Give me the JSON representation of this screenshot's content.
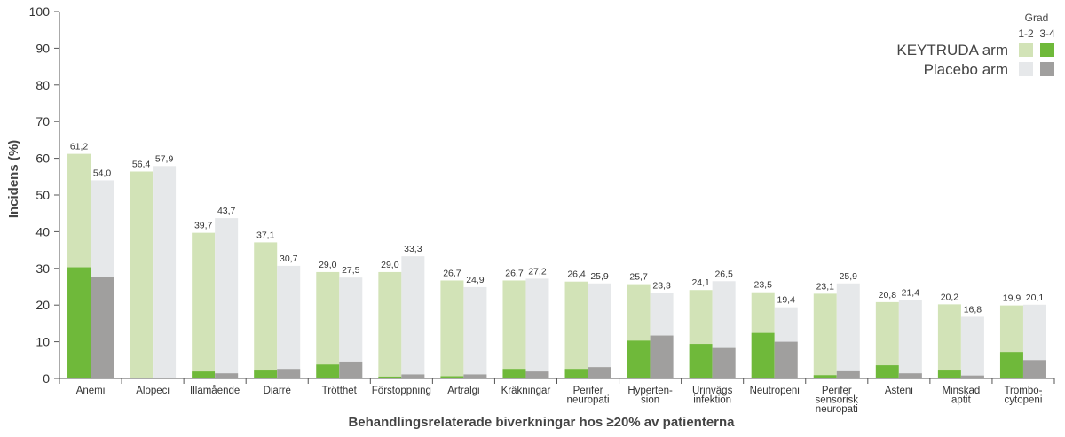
{
  "chart_data": {
    "type": "bar",
    "title": "",
    "xlabel": "Behandlingsrelaterade biverkningar hos ≥20% av patienterna",
    "ylabel": "Incidens (%)",
    "ylim": [
      0,
      100
    ],
    "yticks": [
      0,
      10,
      20,
      30,
      40,
      50,
      60,
      70,
      80,
      90,
      100
    ],
    "grid": false,
    "legend_position": "top-right",
    "legend": {
      "title": "Grad",
      "grade_labels": [
        "1-2",
        "3-4"
      ],
      "series_labels": [
        "KEYTRUDA arm",
        "Placebo arm"
      ]
    },
    "categories": [
      [
        "Anemi"
      ],
      [
        "Alopeci"
      ],
      [
        "Illamående"
      ],
      [
        "Diarré"
      ],
      [
        "Trötthet"
      ],
      [
        "Förstoppning"
      ],
      [
        "Artralgi"
      ],
      [
        "Kräkningar"
      ],
      [
        "Perifer",
        "neuropati"
      ],
      [
        "Hyperten-",
        "sion"
      ],
      [
        "Urinvägs",
        "infektion"
      ],
      [
        "Neutropeni"
      ],
      [
        "Perifer",
        "sensorisk",
        "neuropati"
      ],
      [
        "Asteni"
      ],
      [
        "Minskad",
        "aptit"
      ],
      [
        "Trombo-",
        "cytopeni"
      ]
    ],
    "series": [
      {
        "name": "KEYTRUDA arm",
        "total": [
          61.2,
          56.4,
          39.7,
          37.1,
          29.0,
          29.0,
          26.7,
          26.7,
          26.4,
          25.7,
          24.1,
          23.5,
          23.1,
          20.8,
          20.2,
          19.9
        ],
        "total_labels": [
          "61,2",
          "56,4",
          "39,7",
          "37,1",
          "29,0",
          "29,0",
          "26,7",
          "26,7",
          "26,4",
          "25,7",
          "24,1",
          "23,5",
          "23,1",
          "20,8",
          "20,2",
          "19,9"
        ],
        "grade_3_4": [
          30.3,
          0,
          1.9,
          2.4,
          3.8,
          0.5,
          0.6,
          2.6,
          2.6,
          10.3,
          9.4,
          12.4,
          0.9,
          3.6,
          2.4,
          7.2
        ]
      },
      {
        "name": "Placebo arm",
        "total": [
          54.0,
          57.9,
          43.7,
          30.7,
          27.5,
          33.3,
          24.9,
          27.2,
          25.9,
          23.3,
          26.5,
          19.4,
          25.9,
          21.4,
          16.8,
          20.1
        ],
        "total_labels": [
          "54,0",
          "57,9",
          "43,7",
          "30,7",
          "27,5",
          "33,3",
          "24,9",
          "27,2",
          "25,9",
          "23,3",
          "26,5",
          "19,4",
          "25,9",
          "21,4",
          "16,8",
          "20,1"
        ],
        "grade_3_4": [
          27.6,
          0,
          1.4,
          2.6,
          4.6,
          1.1,
          1.1,
          1.9,
          3.1,
          11.7,
          8.3,
          10.0,
          2.2,
          1.4,
          0.8,
          5.0
        ]
      }
    ],
    "colors": {
      "keytruda_grade_1_2": "#d2e3b7",
      "keytruda_grade_3_4": "#6fb93a",
      "placebo_grade_1_2": "#e6e8ea",
      "placebo_grade_3_4": "#a09f9e",
      "axis": "#555555"
    }
  }
}
